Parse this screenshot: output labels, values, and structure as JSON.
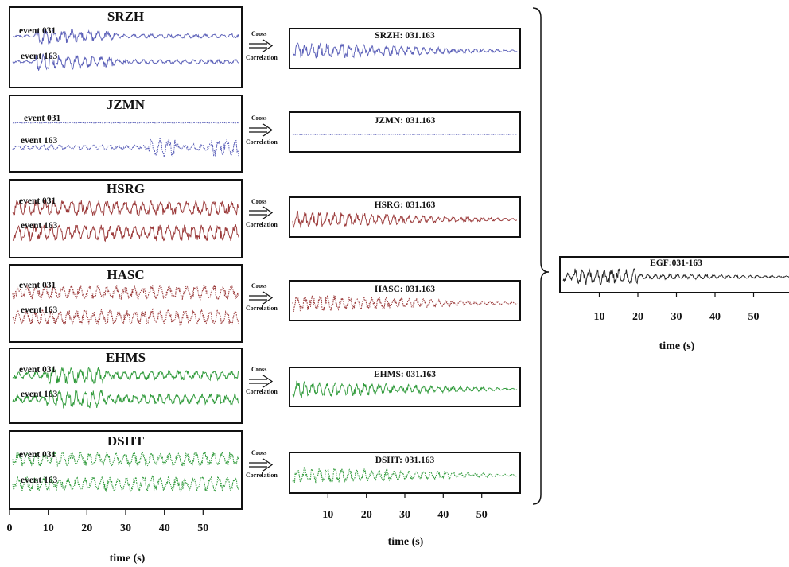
{
  "left_panels": [
    {
      "station": "SRZH",
      "event_a": "event 031",
      "event_b": "event 163",
      "color": "#5a5fb8",
      "style": "solid",
      "quiet_a": false
    },
    {
      "station": "JZMN",
      "event_a": "event 031",
      "event_b": "event 163",
      "color": "#5a5fb8",
      "style": "dotted",
      "quiet_a": true
    },
    {
      "station": "HSRG",
      "event_a": "event 031",
      "event_b": "event 163",
      "color": "#9b3a3a",
      "style": "solid",
      "quiet_a": false
    },
    {
      "station": "HASC",
      "event_a": "event 031",
      "event_b": "event 163",
      "color": "#9b3a3a",
      "style": "dotted",
      "quiet_a": false
    },
    {
      "station": "EHMS",
      "event_a": "event 031",
      "event_b": "event 163",
      "color": "#2f9a3a",
      "style": "solid",
      "quiet_a": false
    },
    {
      "station": "DSHT",
      "event_a": "event 031",
      "event_b": "event 163",
      "color": "#2f9a3a",
      "style": "dotted",
      "quiet_a": false
    }
  ],
  "cross_correlation": {
    "line1": "Cross",
    "line2": "Correlation"
  },
  "cc_panels": [
    {
      "label": "SRZH: 031.163",
      "color": "#5a5fb8",
      "style": "solid",
      "quiet": false
    },
    {
      "label": "JZMN: 031.163",
      "color": "#5a5fb8",
      "style": "dotted",
      "quiet": true
    },
    {
      "label": "HSRG: 031.163",
      "color": "#9b3a3a",
      "style": "solid",
      "quiet": false
    },
    {
      "label": "HASC: 031.163",
      "color": "#9b3a3a",
      "style": "dotted",
      "quiet": false
    },
    {
      "label": "EHMS: 031.163",
      "color": "#2f9a3a",
      "style": "solid",
      "quiet": false
    },
    {
      "label": "DSHT: 031.163",
      "color": "#2f9a3a",
      "style": "dotted",
      "quiet": false
    }
  ],
  "egf_panel": {
    "label": "EGF:031-163",
    "color": "#222222"
  },
  "left_axis": {
    "ticks": [
      "0",
      "10",
      "20",
      "30",
      "40",
      "50"
    ],
    "title": "time (s)"
  },
  "middle_axis": {
    "ticks": [
      "10",
      "20",
      "30",
      "40",
      "50"
    ],
    "title": "time (s)"
  },
  "right_axis": {
    "ticks": [
      "10",
      "20",
      "30",
      "40",
      "50"
    ],
    "title": "time (s)"
  }
}
